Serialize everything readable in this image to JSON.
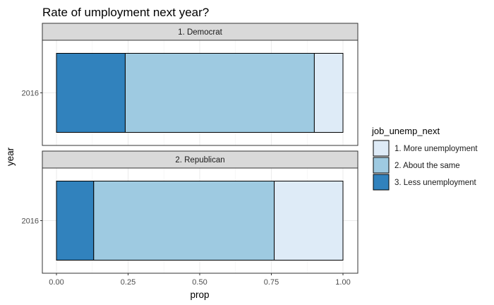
{
  "chart_data": {
    "type": "bar",
    "orientation": "horizontal",
    "stacked": true,
    "title": "Rate of umployment next year?",
    "xlabel": "prop",
    "ylabel": "year",
    "xlim": [
      0,
      1
    ],
    "xticks": [
      "0.00",
      "0.25",
      "0.50",
      "0.75",
      "1.00"
    ],
    "xtick_values": [
      0,
      0.25,
      0.5,
      0.75,
      1.0
    ],
    "grid": true,
    "legend": {
      "title": "job_unemp_next",
      "position": "right",
      "entries": [
        {
          "label": "1. More unemployment",
          "color": "#deebf7"
        },
        {
          "label": "2. About the same",
          "color": "#9ecae1"
        },
        {
          "label": "3. Less unemployment",
          "color": "#3182bd"
        }
      ]
    },
    "facets": [
      {
        "label": "1. Democrat",
        "category": "2016",
        "segments": [
          {
            "series": "3. Less unemployment",
            "value": 0.24
          },
          {
            "series": "2. About the same",
            "value": 0.66
          },
          {
            "series": "1. More unemployment",
            "value": 0.1
          }
        ]
      },
      {
        "label": "2. Republican",
        "category": "2016",
        "segments": [
          {
            "series": "3. Less unemployment",
            "value": 0.13
          },
          {
            "series": "2. About the same",
            "value": 0.63
          },
          {
            "series": "1. More unemployment",
            "value": 0.24
          }
        ]
      }
    ]
  }
}
